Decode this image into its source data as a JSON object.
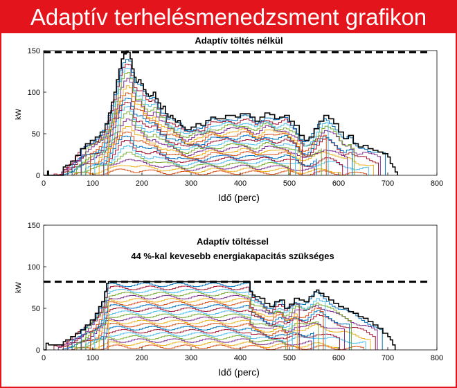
{
  "banner": {
    "title": "Adaptív terhelésmenedzsment grafikon"
  },
  "colors": {
    "banner": "#e3141b",
    "envelope": "#000000",
    "limit": "#000000",
    "series_palette": [
      "#0072bd",
      "#d95319",
      "#edb120",
      "#7e2f8e",
      "#77ac30",
      "#4dbeee",
      "#a2142f"
    ]
  },
  "chart_data": [
    {
      "type": "line",
      "title": "Adaptív töltés nélkül",
      "subtitle": "",
      "xlabel": "Idő (perc)",
      "ylabel": "kW",
      "xlim": [
        0,
        800
      ],
      "ylim": [
        0,
        150
      ],
      "xticks": [
        0,
        100,
        200,
        300,
        400,
        500,
        600,
        700,
        800
      ],
      "yticks": [
        0,
        50,
        100,
        150
      ],
      "limit_line": 148,
      "envelope": {
        "x": [
          0,
          8,
          10,
          30,
          40,
          45,
          55,
          65,
          75,
          85,
          95,
          105,
          115,
          125,
          132,
          138,
          143,
          148,
          153,
          158,
          163,
          168,
          172,
          176,
          180,
          184,
          188,
          193,
          198,
          203,
          208,
          213,
          218,
          223,
          228,
          233,
          238,
          243,
          248,
          253,
          258,
          263,
          268,
          273,
          278,
          283,
          288,
          300,
          310,
          320,
          330,
          340,
          350,
          360,
          370,
          380,
          390,
          400,
          410,
          420,
          430,
          440,
          450,
          460,
          470,
          480,
          490,
          500,
          510,
          520,
          530,
          540,
          550,
          560,
          570,
          580,
          590,
          600,
          610,
          620,
          630,
          640,
          650,
          660,
          670,
          680,
          690,
          700,
          705,
          710,
          715,
          720
        ],
        "y": [
          0,
          5,
          0,
          0,
          10,
          12,
          17,
          24,
          32,
          38,
          42,
          46,
          52,
          62,
          75,
          88,
          100,
          115,
          128,
          140,
          146,
          149,
          148,
          140,
          128,
          118,
          112,
          115,
          110,
          103,
          98,
          95,
          96,
          100,
          92,
          87,
          80,
          83,
          74,
          70,
          72,
          68,
          64,
          66,
          60,
          58,
          55,
          58,
          62,
          60,
          66,
          70,
          68,
          68,
          72,
          72,
          70,
          74,
          74,
          70,
          65,
          70,
          75,
          73,
          68,
          70,
          72,
          65,
          60,
          48,
          42,
          46,
          56,
          65,
          72,
          68,
          62,
          52,
          44,
          48,
          38,
          34,
          36,
          32,
          30,
          28,
          26,
          22,
          14,
          10,
          4,
          0
        ]
      }
    },
    {
      "type": "line",
      "title": "Adaptív töltéssel",
      "subtitle": "44 %-kal kevesebb energiakapacitás szükséges",
      "xlabel": "Idő (perc)",
      "ylabel": "kW",
      "xlim": [
        0,
        800
      ],
      "ylim": [
        0,
        150
      ],
      "xticks": [
        0,
        100,
        200,
        300,
        400,
        500,
        600,
        700,
        800
      ],
      "yticks": [
        0,
        50,
        100,
        150
      ],
      "limit_line": 82,
      "envelope": {
        "x": [
          0,
          5,
          10,
          30,
          40,
          45,
          55,
          65,
          75,
          85,
          95,
          105,
          112,
          118,
          124,
          128,
          132,
          136,
          200,
          300,
          400,
          415,
          420,
          425,
          430,
          440,
          450,
          460,
          470,
          480,
          490,
          500,
          510,
          520,
          530,
          540,
          550,
          555,
          560,
          570,
          580,
          590,
          600,
          610,
          620,
          630,
          640,
          650,
          660,
          670,
          680,
          690,
          700,
          705,
          710,
          715
        ],
        "y": [
          0,
          8,
          6,
          6,
          10,
          12,
          16,
          20,
          24,
          30,
          36,
          44,
          52,
          58,
          70,
          80,
          82,
          82,
          82,
          82,
          82,
          82,
          70,
          66,
          64,
          62,
          56,
          52,
          58,
          60,
          50,
          55,
          62,
          60,
          58,
          64,
          70,
          72,
          68,
          64,
          60,
          56,
          52,
          50,
          46,
          44,
          40,
          38,
          34,
          30,
          26,
          20,
          16,
          12,
          6,
          0
        ]
      }
    }
  ]
}
